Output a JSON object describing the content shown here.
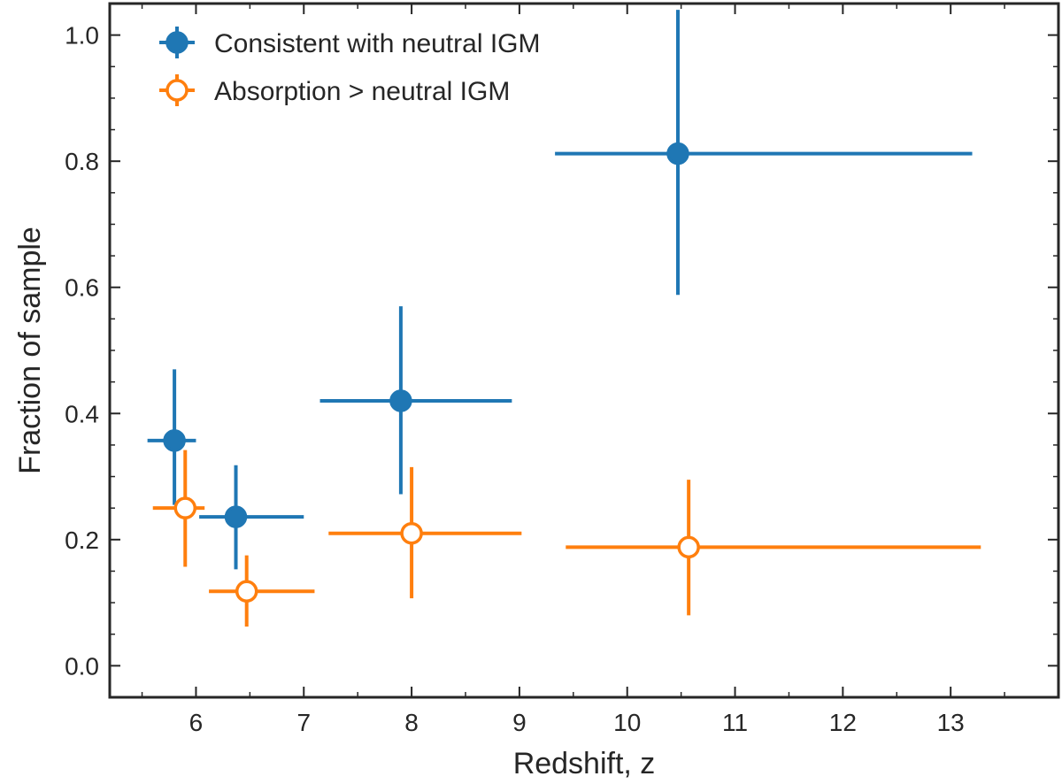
{
  "chart_data": {
    "type": "scatter",
    "title": "",
    "xlabel": "Redshift, z",
    "ylabel": "Fraction of sample",
    "xlim": [
      5.2,
      14.0
    ],
    "ylim": [
      -0.05,
      1.05
    ],
    "xticks": [
      6,
      7,
      8,
      9,
      10,
      11,
      12,
      13
    ],
    "xtick_labels": [
      "6",
      "7",
      "8",
      "9",
      "10",
      "11",
      "12",
      "13"
    ],
    "yticks": [
      0.0,
      0.2,
      0.4,
      0.6,
      0.8,
      1.0
    ],
    "ytick_labels": [
      "0.0",
      "0.2",
      "0.4",
      "0.6",
      "0.8",
      "1.0"
    ],
    "x_minor_step": 0.5,
    "y_minor_step": 0.05,
    "grid": false,
    "legend_position": "top-left",
    "series": [
      {
        "name": "Consistent with neutral IGM",
        "color": "#1f77b4",
        "marker": "filled-circle",
        "points": [
          {
            "x": 5.8,
            "y": 0.357,
            "xlo": 5.55,
            "xhi": 6.0,
            "ylo": 0.255,
            "yhi": 0.47
          },
          {
            "x": 6.37,
            "y": 0.236,
            "xlo": 6.03,
            "xhi": 7.0,
            "ylo": 0.153,
            "yhi": 0.318
          },
          {
            "x": 7.9,
            "y": 0.42,
            "xlo": 7.15,
            "xhi": 8.93,
            "ylo": 0.272,
            "yhi": 0.57
          },
          {
            "x": 10.47,
            "y": 0.812,
            "xlo": 9.33,
            "xhi": 13.2,
            "ylo": 0.588,
            "yhi": 1.04
          }
        ]
      },
      {
        "name": "Absorption > neutral IGM",
        "color": "#ff7f0e",
        "marker": "open-circle",
        "points": [
          {
            "x": 5.9,
            "y": 0.25,
            "xlo": 5.6,
            "xhi": 6.08,
            "ylo": 0.157,
            "yhi": 0.342
          },
          {
            "x": 6.47,
            "y": 0.118,
            "xlo": 6.12,
            "xhi": 7.1,
            "ylo": 0.062,
            "yhi": 0.175
          },
          {
            "x": 8.0,
            "y": 0.21,
            "xlo": 7.23,
            "xhi": 9.02,
            "ylo": 0.107,
            "yhi": 0.315
          },
          {
            "x": 10.57,
            "y": 0.188,
            "xlo": 9.43,
            "xhi": 13.28,
            "ylo": 0.08,
            "yhi": 0.295
          }
        ]
      }
    ]
  }
}
